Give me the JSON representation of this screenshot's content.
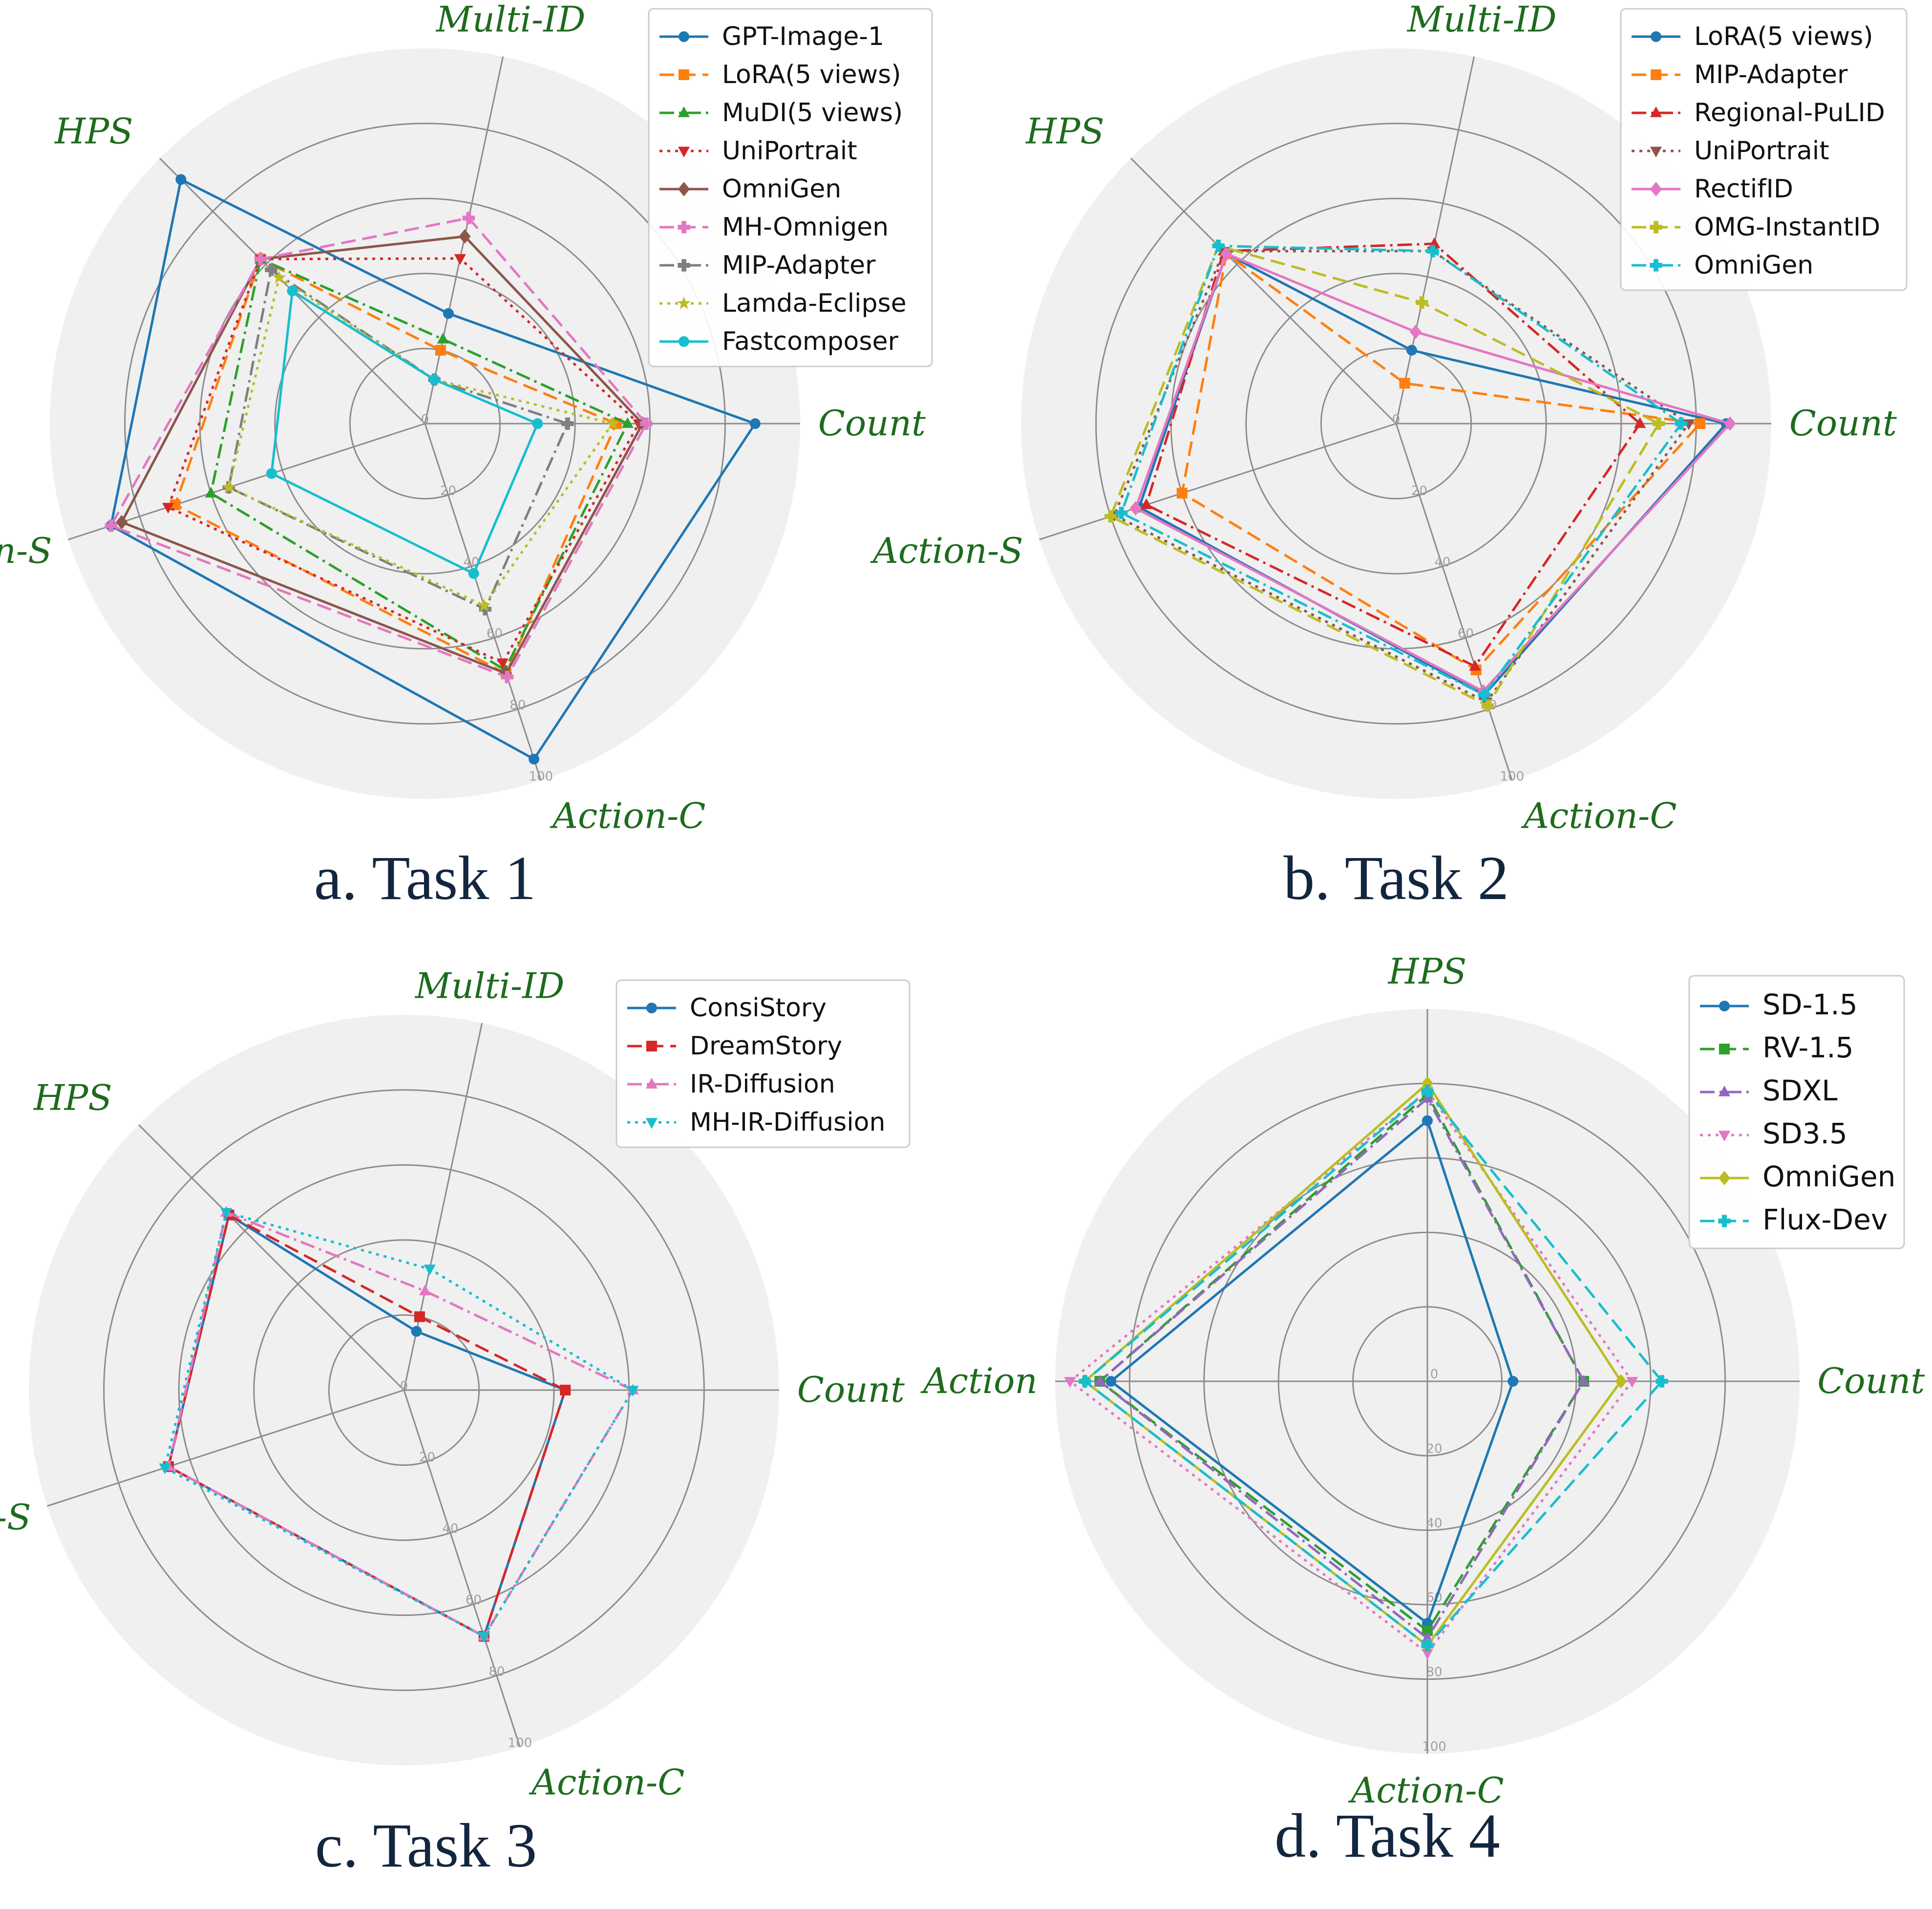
{
  "colors": {
    "axis_label": "#1e6b1e",
    "caption": "#13263f",
    "panel_bg": "#f0f0f0",
    "grid": "#8c8c8c",
    "tick": "#a0a0a0"
  },
  "radial_ticks": [
    "0",
    "20",
    "40",
    "60",
    "80",
    "100"
  ],
  "chart_data": [
    {
      "type": "radar",
      "caption": "a. Task 1",
      "axes": [
        "Count",
        "Multi-ID",
        "HPS",
        "Action-S",
        "Action-C"
      ],
      "rlim": [
        0,
        100
      ],
      "legend_position": "top-right",
      "series": [
        {
          "name": "GPT-Image-1",
          "color": "#1f77b4",
          "dash": "solid",
          "marker": "circle",
          "values": [
            88,
            30,
            92,
            88,
            94
          ]
        },
        {
          "name": "LoRA(5 views)",
          "color": "#ff7f0e",
          "dash": "dashed",
          "marker": "square",
          "values": [
            51,
            20,
            62,
            70,
            70
          ]
        },
        {
          "name": "MuDI(5 views)",
          "color": "#2ca02c",
          "dash": "dashdot",
          "marker": "triangle-up",
          "values": [
            54,
            23,
            62,
            60,
            69
          ]
        },
        {
          "name": "UniPortrait",
          "color": "#d62728",
          "dash": "dotted",
          "marker": "triangle-down",
          "values": [
            57,
            45,
            62,
            72,
            67
          ]
        },
        {
          "name": "OmniGen",
          "color": "#8c564b",
          "dash": "solid",
          "marker": "diamond",
          "values": [
            58,
            51,
            62,
            85,
            70
          ]
        },
        {
          "name": "MH-Omnigen",
          "color": "#e377c2",
          "dash": "dashed",
          "marker": "plus",
          "values": [
            59,
            56,
            62,
            88,
            71
          ]
        },
        {
          "name": "MIP-Adapter",
          "color": "#7f7f7f",
          "dash": "dashdot",
          "marker": "plus",
          "values": [
            38,
            12,
            58,
            55,
            52
          ]
        },
        {
          "name": "Lamda-Eclipse",
          "color": "#bcbd22",
          "dash": "dotted",
          "marker": "star",
          "values": [
            50,
            12,
            55,
            55,
            51
          ]
        },
        {
          "name": "Fastcomposer",
          "color": "#17becf",
          "dash": "solid",
          "marker": "circle",
          "values": [
            30,
            12,
            50,
            43,
            42
          ]
        }
      ]
    },
    {
      "type": "radar",
      "caption": "b. Task 2",
      "axes": [
        "Count",
        "Multi-ID",
        "HPS",
        "Action-S",
        "Action-C"
      ],
      "rlim": [
        0,
        100
      ],
      "legend_position": "top-right",
      "series": [
        {
          "name": "LoRA(5 views)",
          "color": "#1f77b4",
          "dash": "solid",
          "marker": "circle",
          "values": [
            88,
            20,
            64,
            72,
            76
          ]
        },
        {
          "name": "MIP-Adapter",
          "color": "#ff7f0e",
          "dash": "dashed",
          "marker": "square",
          "values": [
            81,
            11,
            64,
            60,
            69
          ]
        },
        {
          "name": "Regional-PuLID",
          "color": "#d62728",
          "dash": "dashdot",
          "marker": "triangle-up",
          "values": [
            65,
            49,
            65,
            70,
            68
          ]
        },
        {
          "name": "UniPortrait",
          "color": "#8c564b",
          "dash": "dotted",
          "marker": "triangle-down",
          "values": [
            78,
            47,
            65,
            79,
            78
          ]
        },
        {
          "name": "RectifID",
          "color": "#e377c2",
          "dash": "solid",
          "marker": "diamond",
          "values": [
            89,
            25,
            64,
            73,
            75
          ]
        },
        {
          "name": "OMG-InstantID",
          "color": "#bcbd22",
          "dash": "dashed",
          "marker": "plus",
          "values": [
            70,
            33,
            67,
            80,
            79
          ]
        },
        {
          "name": "OmniGen",
          "color": "#17becf",
          "dash": "dashdot",
          "marker": "plus",
          "values": [
            76,
            47,
            67,
            77,
            76
          ]
        }
      ]
    },
    {
      "type": "radar",
      "caption": "c. Task 3",
      "axes": [
        "Count",
        "Multi-ID",
        "HPS",
        "Action-S",
        "Action-C"
      ],
      "rlim": [
        0,
        100
      ],
      "legend_position": "top-right",
      "series": [
        {
          "name": "ConsiStory",
          "color": "#1f77b4",
          "dash": "solid",
          "marker": "circle",
          "values": [
            43,
            16,
            66,
            66,
            69
          ]
        },
        {
          "name": "DreamStory",
          "color": "#d62728",
          "dash": "dashed",
          "marker": "square",
          "values": [
            43,
            20,
            66,
            66,
            69
          ]
        },
        {
          "name": "IR-Diffusion",
          "color": "#e377c2",
          "dash": "dashdot",
          "marker": "triangle-up",
          "values": [
            61,
            27,
            67,
            66,
            69
          ]
        },
        {
          "name": "MH-IR-Diffusion",
          "color": "#17becf",
          "dash": "dotted",
          "marker": "triangle-down",
          "values": [
            61,
            33,
            67,
            67,
            69
          ]
        }
      ]
    },
    {
      "type": "radar",
      "caption": "d. Task 4",
      "axes": [
        "Count",
        "HPS",
        "Action",
        "Action-C"
      ],
      "rlim": [
        0,
        100
      ],
      "legend_position": "top-right",
      "series": [
        {
          "name": "SD-1.5",
          "color": "#1f77b4",
          "dash": "solid",
          "marker": "circle",
          "values": [
            23,
            70,
            85,
            65
          ]
        },
        {
          "name": "RV-1.5",
          "color": "#2ca02c",
          "dash": "dashed",
          "marker": "square",
          "values": [
            42,
            77,
            88,
            67
          ]
        },
        {
          "name": "SDXL",
          "color": "#9467bd",
          "dash": "dashdot",
          "marker": "triangle-up",
          "values": [
            42,
            76,
            88,
            69
          ]
        },
        {
          "name": "SD3.5",
          "color": "#e377c2",
          "dash": "dotted",
          "marker": "triangle-down",
          "values": [
            55,
            78,
            96,
            73
          ]
        },
        {
          "name": "OmniGen",
          "color": "#bcbd22",
          "dash": "solid",
          "marker": "diamond",
          "values": [
            52,
            80,
            92,
            71
          ]
        },
        {
          "name": "Flux-Dev",
          "color": "#17becf",
          "dash": "dashed",
          "marker": "plus",
          "values": [
            63,
            78,
            92,
            71
          ]
        }
      ]
    }
  ]
}
